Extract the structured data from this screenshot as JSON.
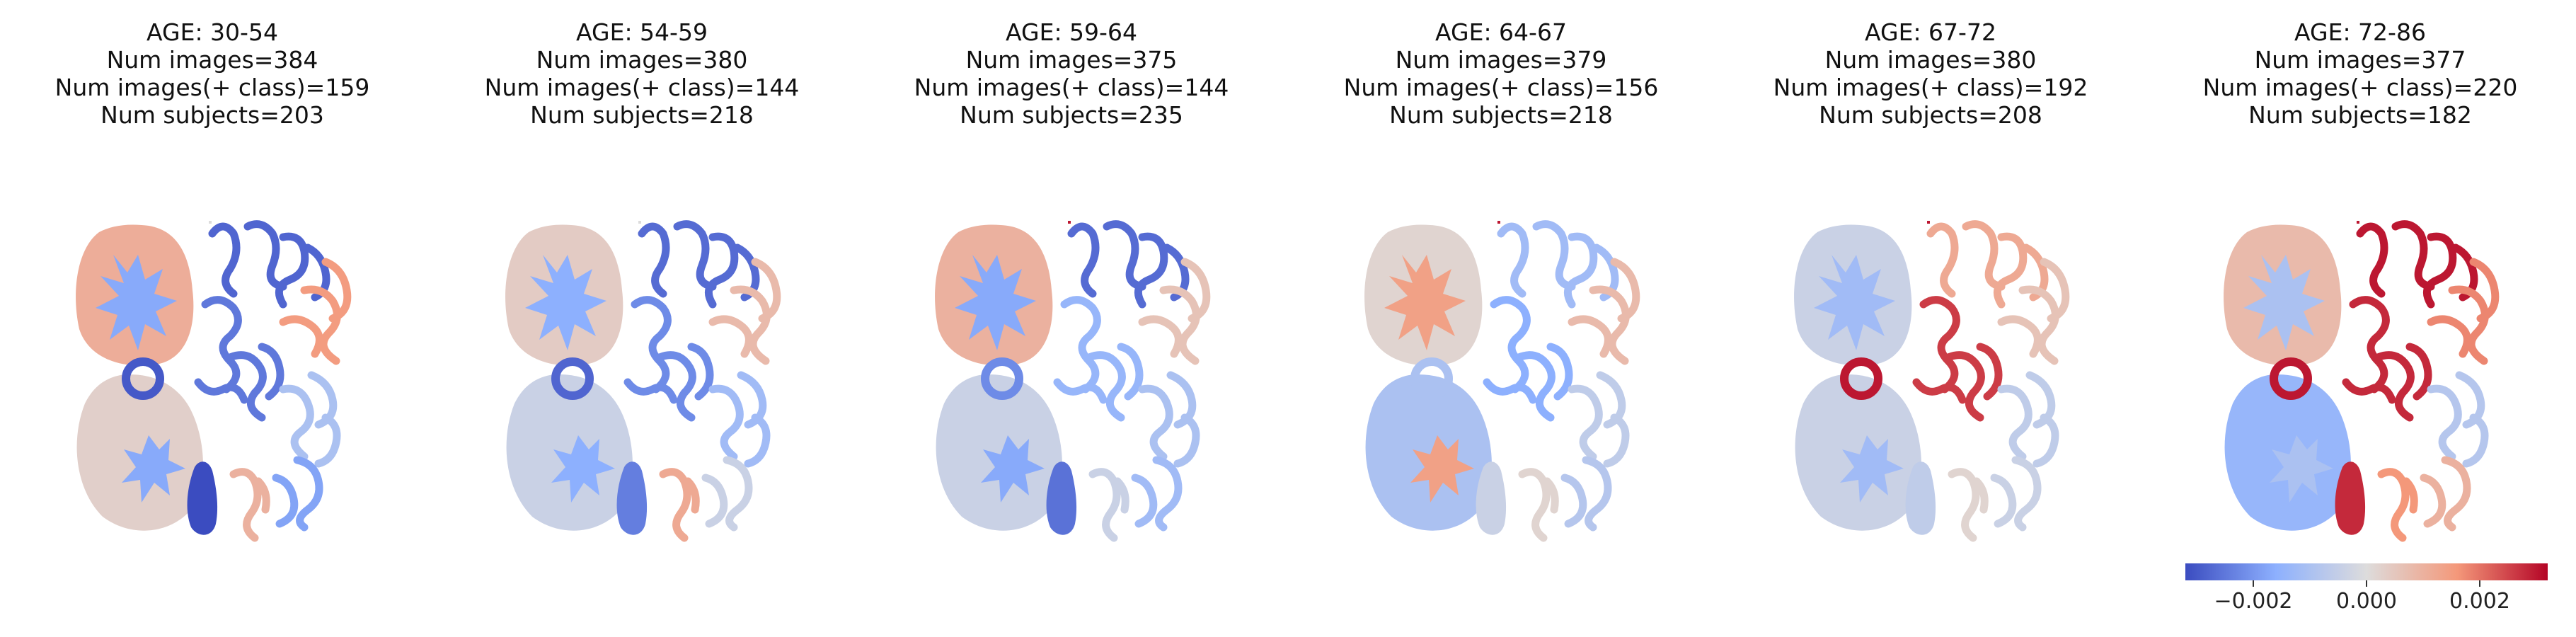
{
  "chart_data": {
    "type": "heatmap",
    "title": "",
    "panels": [
      {
        "age": "AGE: 30-54",
        "images": "Num images=384",
        "pos": "Num images(+ class)=159",
        "subjects": "Num subjects=203",
        "regions": {
          "lobe_upper": 0.0011,
          "lobe_lower": 0.0003,
          "central_matter": -0.0017,
          "ring": -0.003,
          "sulci_top": -0.0028,
          "sulci_right": 0.0015,
          "sulci_mid": -0.0025,
          "sulci_lowright": -0.001,
          "lower_left": -0.0032,
          "lower_mid": 0.001,
          "lower_right": -0.0018,
          "highlight_spot": 0.0
        }
      },
      {
        "age": "AGE: 54-59",
        "images": "Num images=380",
        "pos": "Num images(+ class)=144",
        "subjects": "Num subjects=218",
        "regions": {
          "lobe_upper": 0.0004,
          "lobe_lower": -0.0004,
          "central_matter": -0.0016,
          "ring": -0.0028,
          "sulci_top": -0.0027,
          "sulci_right": 0.0008,
          "sulci_mid": -0.0022,
          "sulci_lowright": -0.0012,
          "lower_left": -0.0024,
          "lower_mid": 0.0012,
          "lower_right": -0.0004,
          "highlight_spot": 0.0
        }
      },
      {
        "age": "AGE: 59-64",
        "images": "Num images=375",
        "pos": "Num images(+ class)=144",
        "subjects": "Num subjects=235",
        "regions": {
          "lobe_upper": 0.001,
          "lobe_lower": -0.0004,
          "central_matter": -0.0017,
          "ring": -0.0022,
          "sulci_top": -0.0027,
          "sulci_right": 0.0006,
          "sulci_mid": -0.0014,
          "sulci_lowright": -0.001,
          "lower_left": -0.0026,
          "lower_mid": -0.0004,
          "lower_right": -0.0012,
          "highlight_spot": 0.003
        }
      },
      {
        "age": "AGE: 64-67",
        "images": "Num images=379",
        "pos": "Num images(+ class)=156",
        "subjects": "Num subjects=218",
        "regions": {
          "lobe_upper": 0.0002,
          "lobe_lower": -0.001,
          "central_matter": 0.0014,
          "ring": -0.001,
          "sulci_top": -0.0012,
          "sulci_right": 0.0008,
          "sulci_mid": -0.0016,
          "sulci_lowright": -0.0006,
          "lower_left": -0.0004,
          "lower_mid": 0.0002,
          "lower_right": -0.0008,
          "highlight_spot": 0.003
        }
      },
      {
        "age": "AGE: 67-72",
        "images": "Num images=380",
        "pos": "Num images(+ class)=192",
        "subjects": "Num subjects=208",
        "regions": {
          "lobe_upper": -0.0004,
          "lobe_lower": -0.0004,
          "central_matter": -0.0012,
          "ring": 0.003,
          "sulci_top": 0.0012,
          "sulci_right": 0.0006,
          "sulci_mid": 0.0026,
          "sulci_lowright": -0.0006,
          "lower_left": -0.0006,
          "lower_mid": 0.0002,
          "lower_right": -0.0004,
          "highlight_spot": 0.003
        }
      },
      {
        "age": "AGE: 72-86",
        "images": "Num images=377",
        "pos": "Num images(+ class)=220",
        "subjects": "Num subjects=182",
        "regions": {
          "lobe_upper": 0.0008,
          "lobe_lower": -0.0014,
          "central_matter": -0.001,
          "ring": 0.003,
          "sulci_top": 0.003,
          "sulci_right": 0.0018,
          "sulci_mid": 0.0028,
          "sulci_lowright": -0.0008,
          "lower_left": 0.0028,
          "lower_mid": 0.0016,
          "lower_right": 0.001,
          "highlight_spot": 0.003
        }
      }
    ],
    "colorbar": {
      "range": [
        -0.0032,
        0.0032
      ],
      "ticks": [
        -0.002,
        0.0,
        0.002
      ],
      "tick_labels": [
        "−0.002",
        "0.000",
        "0.002"
      ],
      "colormap": "coolwarm"
    }
  }
}
